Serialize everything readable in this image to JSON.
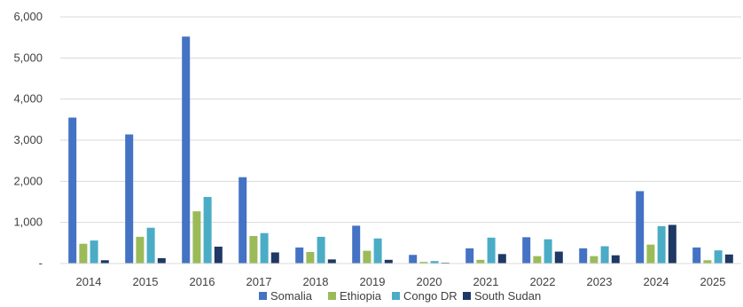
{
  "chart_data": {
    "type": "bar",
    "title": "",
    "xlabel": "",
    "ylabel": "",
    "categories": [
      "2014",
      "2015",
      "2016",
      "2017",
      "2018",
      "2019",
      "2020",
      "2021",
      "2022",
      "2023",
      "2024",
      "2025"
    ],
    "ylim": [
      0,
      6000
    ],
    "yticks": [
      0,
      1000,
      2000,
      3000,
      4000,
      5000,
      6000
    ],
    "ytick_labels": [
      "-",
      "1,000",
      "2,000",
      "3,000",
      "4,000",
      "5,000",
      "6,000"
    ],
    "grid": true,
    "legend_position": "bottom",
    "series": [
      {
        "name": "Somalia",
        "color": "#4472C4",
        "values": [
          3550,
          3140,
          5520,
          2100,
          390,
          920,
          210,
          370,
          640,
          370,
          1760,
          390
        ]
      },
      {
        "name": "Ethiopia",
        "color": "#9BBB59",
        "values": [
          480,
          650,
          1270,
          670,
          280,
          310,
          40,
          90,
          180,
          180,
          460,
          80
        ]
      },
      {
        "name": "Congo DR",
        "color": "#4BACC6",
        "values": [
          560,
          870,
          1620,
          740,
          650,
          610,
          60,
          630,
          590,
          420,
          910,
          320
        ]
      },
      {
        "name": "South Sudan",
        "color": "#1F3864",
        "values": [
          80,
          130,
          410,
          270,
          100,
          90,
          20,
          230,
          290,
          200,
          940,
          220
        ]
      }
    ]
  }
}
